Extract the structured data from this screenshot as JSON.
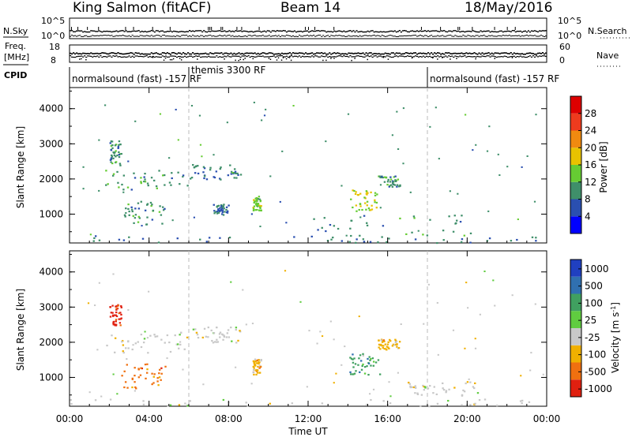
{
  "header": {
    "station": "King Salmon (fitACF)",
    "beam": "Beam 14",
    "date": "18/May/2016"
  },
  "top_panels": {
    "nsky_label": "N.Sky",
    "nsky_ticks": [
      "10^5",
      "10^0"
    ],
    "nsearch_label": "N.Search",
    "nsearch_ticks": [
      "10^5",
      "10^0"
    ],
    "freq_label_line1": "Freq.",
    "freq_label_line2": "[MHz]",
    "freq_ticks": [
      "18",
      "8"
    ],
    "nave_label": "Nave",
    "nave_ticks": [
      "60",
      "0"
    ],
    "cpid_label": "CPID",
    "cpid_segments": [
      {
        "label": "normalsound (fast) -157 RF",
        "start": "00:00",
        "end": "06:00"
      },
      {
        "label": "themis 3300 RF",
        "start": "06:00",
        "end": "18:00"
      },
      {
        "label": "normalsound (fast) -157 RF",
        "start": "18:00",
        "end": "24:00"
      }
    ]
  },
  "chart_data": [
    {
      "type": "heatmap",
      "title": "",
      "xlabel": "Time UT",
      "ylabel": "Slant Range [km]",
      "x_ticks": [
        "00:00",
        "04:00",
        "08:00",
        "12:00",
        "16:00",
        "20:00",
        "00:00"
      ],
      "y_ticks": [
        "1000",
        "2000",
        "3000",
        "4000"
      ],
      "xlim_hours": [
        0,
        24
      ],
      "ylim_km": [
        180,
        4600
      ],
      "colorbar_label": "Power [dB]",
      "colorbar_ticks": [
        "4",
        "8",
        "12",
        "16",
        "20",
        "24",
        "28"
      ],
      "colorbar_range": [
        0,
        30
      ],
      "colorbar_colors": [
        "#0000ff",
        "#2a4fb0",
        "#3f8f6a",
        "#66cc33",
        "#e8c200",
        "#f08a10",
        "#ee3b1e",
        "#dd0000"
      ],
      "data_regions": [
        {
          "t": [
            1.7,
            6.0
          ],
          "r": [
            1700,
            2300
          ],
          "level": 8
        },
        {
          "t": [
            2.0,
            2.6
          ],
          "r": [
            2400,
            3100
          ],
          "level": 8
        },
        {
          "t": [
            2.6,
            4.8
          ],
          "r": [
            700,
            1400
          ],
          "level": 8
        },
        {
          "t": [
            6.0,
            8.6
          ],
          "r": [
            2000,
            2450
          ],
          "level": 6
        },
        {
          "t": [
            7.2,
            8.0
          ],
          "r": [
            1000,
            1300
          ],
          "level": 6
        },
        {
          "t": [
            9.2,
            9.6
          ],
          "r": [
            1100,
            1550
          ],
          "level": 12
        },
        {
          "t": [
            14.0,
            15.6
          ],
          "r": [
            1100,
            1700
          ],
          "level": 14
        },
        {
          "t": [
            15.5,
            16.6
          ],
          "r": [
            1800,
            2100
          ],
          "level": 8
        },
        {
          "t": [
            12.0,
            20.5
          ],
          "r": [
            300,
            1000
          ],
          "level": 8
        },
        {
          "t": [
            0.0,
            24.0
          ],
          "r": [
            200,
            400
          ],
          "level": 6
        }
      ]
    },
    {
      "type": "heatmap",
      "title": "",
      "xlabel": "Time UT",
      "ylabel": "Slant Range [km]",
      "x_ticks": [
        "00:00",
        "04:00",
        "08:00",
        "12:00",
        "16:00",
        "20:00",
        "00:00"
      ],
      "y_ticks": [
        "1000",
        "2000",
        "3000",
        "4000"
      ],
      "xlim_hours": [
        0,
        24
      ],
      "ylim_km": [
        180,
        4600
      ],
      "colorbar_label": "Velocity [m s^-1]",
      "colorbar_ticks": [
        "1000",
        "500",
        "100",
        "25",
        "-25",
        "-100",
        "-500",
        "-1000"
      ],
      "colorbar_colors": [
        "#2040c0",
        "#3070b0",
        "#40a060",
        "#60cc40",
        "#c8c8c8",
        "#f0b000",
        "#f07010",
        "#e02010"
      ],
      "data_regions": [
        {
          "t": [
            1.7,
            6.0
          ],
          "r": [
            1700,
            2300
          ],
          "class": "-25..25"
        },
        {
          "t": [
            2.0,
            2.6
          ],
          "r": [
            2500,
            3100
          ],
          "class": "-1000"
        },
        {
          "t": [
            2.6,
            4.8
          ],
          "r": [
            700,
            1400
          ],
          "class": "-500"
        },
        {
          "t": [
            6.0,
            8.6
          ],
          "r": [
            2000,
            2450
          ],
          "class": "-25..25"
        },
        {
          "t": [
            9.2,
            9.6
          ],
          "r": [
            1100,
            1550
          ],
          "class": "-100"
        },
        {
          "t": [
            14.0,
            15.6
          ],
          "r": [
            1100,
            1700
          ],
          "class": "100"
        },
        {
          "t": [
            15.5,
            16.6
          ],
          "r": [
            1800,
            2100
          ],
          "class": "-100"
        },
        {
          "t": [
            17.0,
            20.5
          ],
          "r": [
            500,
            900
          ],
          "class": "-25..25"
        },
        {
          "t": [
            0.0,
            24.0
          ],
          "r": [
            200,
            400
          ],
          "class": "-25..25"
        }
      ]
    }
  ]
}
